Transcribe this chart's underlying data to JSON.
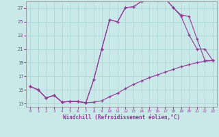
{
  "xlabel": "Windchill (Refroidissement éolien,°C)",
  "bg_color": "#c9e8e8",
  "grid_color": "#aad4d4",
  "line_color": "#993399",
  "xlim": [
    -0.5,
    23.5
  ],
  "ylim": [
    12.5,
    28.0
  ],
  "yticks": [
    13,
    15,
    17,
    19,
    21,
    23,
    25,
    27
  ],
  "xticks": [
    0,
    1,
    2,
    3,
    4,
    5,
    6,
    7,
    8,
    9,
    10,
    11,
    12,
    13,
    14,
    15,
    16,
    17,
    18,
    19,
    20,
    21,
    22,
    23
  ],
  "series1_x": [
    0,
    1,
    2,
    3,
    4,
    5,
    6,
    7,
    8,
    9,
    10,
    11,
    12,
    13,
    14,
    15,
    16,
    17,
    18,
    19,
    20,
    21,
    22,
    23
  ],
  "series1_y": [
    15.5,
    15.0,
    13.8,
    14.2,
    13.2,
    13.3,
    13.3,
    13.1,
    13.2,
    13.4,
    14.0,
    14.5,
    15.2,
    15.8,
    16.3,
    16.8,
    17.2,
    17.6,
    18.0,
    18.4,
    18.7,
    19.0,
    19.2,
    19.3
  ],
  "series2_x": [
    0,
    1,
    2,
    3,
    4,
    5,
    6,
    7,
    8,
    9,
    10,
    11,
    12,
    13,
    14,
    15,
    16,
    17,
    18,
    19,
    20,
    21,
    22,
    23
  ],
  "series2_y": [
    15.5,
    15.0,
    13.8,
    14.2,
    13.2,
    13.3,
    13.3,
    13.1,
    16.5,
    21.0,
    25.3,
    25.0,
    27.1,
    27.2,
    28.0,
    28.3,
    28.2,
    28.4,
    27.1,
    25.8,
    23.1,
    21.0,
    21.0,
    19.3
  ],
  "series3_x": [
    0,
    1,
    2,
    3,
    4,
    5,
    6,
    7,
    8,
    9,
    10,
    11,
    12,
    13,
    14,
    15,
    16,
    17,
    18,
    19,
    20,
    21,
    22,
    23
  ],
  "series3_y": [
    15.5,
    15.0,
    13.8,
    14.2,
    13.2,
    13.3,
    13.3,
    13.1,
    16.5,
    21.0,
    25.3,
    25.0,
    27.1,
    27.2,
    28.0,
    28.3,
    28.2,
    28.4,
    27.1,
    26.0,
    25.8,
    22.5,
    19.3,
    19.3
  ]
}
